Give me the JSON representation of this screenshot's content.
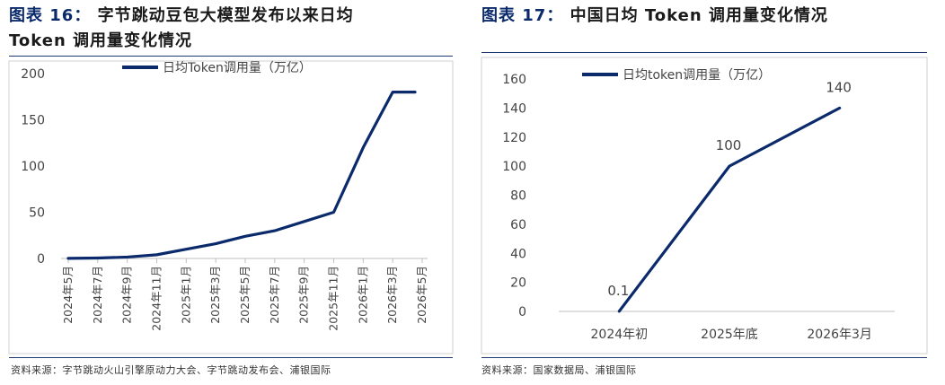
{
  "left_figure": {
    "label": "图表",
    "number": "16：",
    "title_line1": "字节跳动豆包大模型发布以来日均",
    "title_line2": "Token 调用量变化情况",
    "source": "资料来源：字节跳动火山引擎原动力大会、字节跳动发布会、浦银国际",
    "chart_data": {
      "type": "line",
      "title": "",
      "xlabel": "",
      "ylabel": "",
      "categories": [
        "2024年5月",
        "2024年7月",
        "2024年9月",
        "2024年11月",
        "2025年1月",
        "2025年3月",
        "2025年5月",
        "2025年7月",
        "2025年9月",
        "2025年11月",
        "2026年1月",
        "2026年3月",
        "2026年5月"
      ],
      "series": [
        {
          "name": "日均Token调用量（万亿）",
          "values": [
            0.12,
            0.5,
            1.5,
            4,
            10,
            16,
            24,
            30,
            40,
            50,
            120,
            180,
            180
          ]
        }
      ],
      "y_ticks": [
        0,
        50,
        100,
        150,
        200
      ],
      "ylim": [
        0,
        200
      ],
      "grid": false,
      "legend_position": "top-center",
      "line_color": "#0b2a6b"
    }
  },
  "right_figure": {
    "label": "图表",
    "number": "17：",
    "title_line1": "中国日均 Token 调用量变化情况",
    "source": "资料来源：国家数据局、浦银国际",
    "chart_data": {
      "type": "line",
      "title": "",
      "xlabel": "",
      "ylabel": "",
      "categories": [
        "2024年初",
        "2025年底",
        "2026年3月"
      ],
      "series": [
        {
          "name": "日均token调用量（万亿）",
          "values": [
            0.1,
            100,
            140
          ],
          "data_labels": [
            "0.1",
            "100",
            "140"
          ]
        }
      ],
      "y_ticks": [
        0,
        20,
        40,
        60,
        80,
        100,
        120,
        140,
        160
      ],
      "ylim": [
        0,
        160
      ],
      "grid": false,
      "legend_position": "top-center",
      "line_color": "#0b2a6b"
    }
  }
}
